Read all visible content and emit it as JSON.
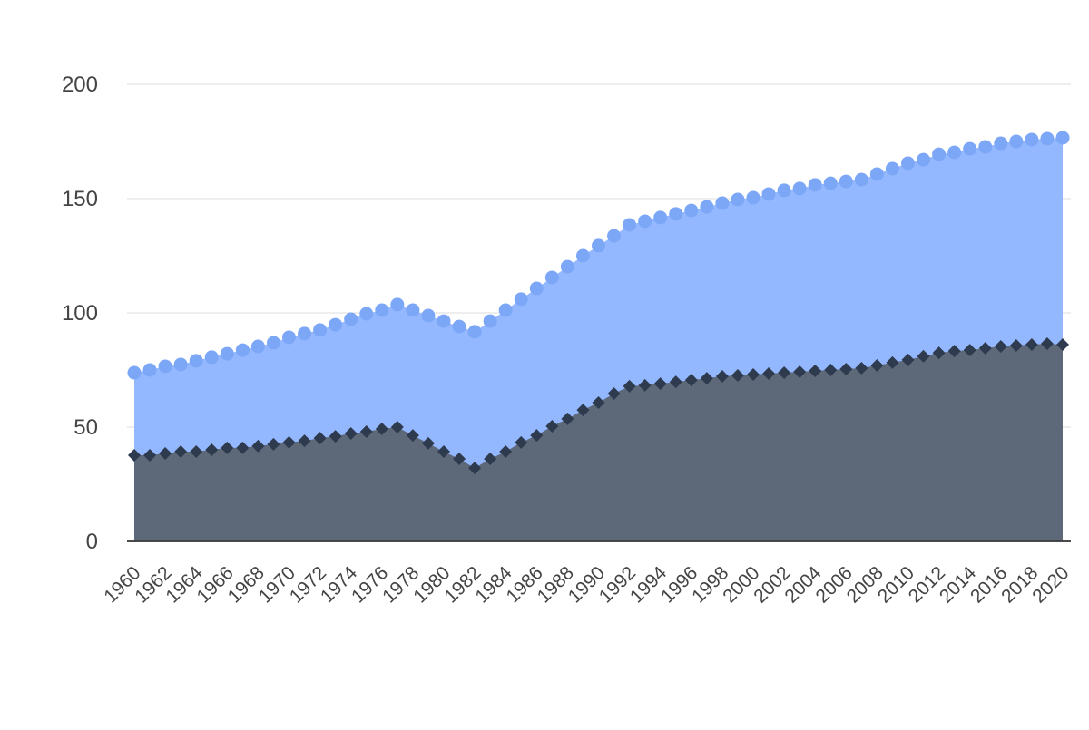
{
  "chart_data": {
    "type": "area",
    "x": [
      1960,
      1961,
      1962,
      1963,
      1964,
      1965,
      1966,
      1967,
      1968,
      1969,
      1970,
      1971,
      1972,
      1973,
      1974,
      1975,
      1976,
      1977,
      1978,
      1979,
      1980,
      1981,
      1982,
      1983,
      1984,
      1985,
      1986,
      1987,
      1988,
      1989,
      1990,
      1991,
      1992,
      1993,
      1994,
      1995,
      1996,
      1997,
      1998,
      1999,
      2000,
      2001,
      2002,
      2003,
      2004,
      2005,
      2006,
      2007,
      2008,
      2009,
      2010,
      2011,
      2012,
      2013,
      2014,
      2015,
      2016,
      2017,
      2018,
      2019,
      2020
    ],
    "series": [
      {
        "color": "#94b8ff",
        "marker_color": "#7ca7f7",
        "marker": "circle",
        "values": [
          73.8,
          75,
          76.6,
          77.4,
          79,
          80.6,
          82.1,
          83.7,
          85.3,
          86.9,
          89.3,
          90.9,
          92.5,
          94.8,
          97.2,
          99.6,
          101.2,
          103.6,
          101.2,
          98.8,
          96.4,
          94,
          91.7,
          96.4,
          101.2,
          106,
          110.7,
          115.5,
          120.2,
          125,
          129.4,
          133.7,
          138.5,
          140.1,
          141.7,
          143.3,
          144.8,
          146.4,
          148,
          149.6,
          150.4,
          152,
          153.6,
          154.4,
          156,
          156.7,
          157.5,
          158.3,
          160.7,
          163.1,
          165.5,
          167,
          169.4,
          170.2,
          171.8,
          172.6,
          174.2,
          175,
          175.8,
          176.2,
          176.6
        ]
      },
      {
        "color": "#5d6878",
        "marker_color": "#2e3a4d",
        "marker": "diamond",
        "values": [
          37.7,
          37.7,
          38.5,
          39.3,
          39.3,
          40.1,
          40.9,
          40.9,
          41.7,
          42.5,
          43.3,
          44,
          45.2,
          46,
          47.2,
          48,
          49.2,
          50,
          46.4,
          42.9,
          39.3,
          36.1,
          32.1,
          36.1,
          39.3,
          43.3,
          46.4,
          50.4,
          53.6,
          57.5,
          60.7,
          64.7,
          67.9,
          68.3,
          69,
          69.8,
          70.6,
          71.4,
          72.2,
          72.6,
          73,
          73.4,
          73.8,
          74.2,
          74.6,
          75,
          75.4,
          75.8,
          77,
          78.2,
          79.4,
          81,
          82.5,
          83.3,
          83.7,
          84.5,
          85.3,
          85.7,
          86.1,
          86.5,
          86.1
        ]
      }
    ],
    "xlim": [
      1960,
      2020
    ],
    "xticks": [
      1960,
      1962,
      1964,
      1966,
      1968,
      1970,
      1972,
      1974,
      1976,
      1978,
      1980,
      1982,
      1984,
      1986,
      1988,
      1990,
      1992,
      1994,
      1996,
      1998,
      2000,
      2002,
      2004,
      2006,
      2008,
      2010,
      2012,
      2014,
      2016,
      2018,
      2020
    ],
    "ylim": [
      0,
      200
    ],
    "yticks": [
      0,
      50,
      100,
      150,
      200
    ],
    "grid": true
  }
}
